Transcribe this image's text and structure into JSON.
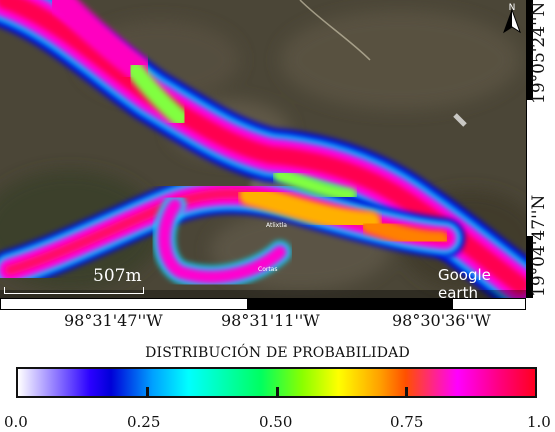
{
  "map": {
    "scale_label": "507m",
    "watermark": "Google earth",
    "north_label": "N",
    "place_labels": [
      "Atlixtla",
      "Cortas"
    ]
  },
  "coordinates": {
    "latitudes": [
      "19°05'24''N",
      "19°04'47''N"
    ],
    "longitudes": [
      "98°31'47''W",
      "98°31'11''W",
      "98°30'36''W"
    ]
  },
  "legend": {
    "title": "DISTRIBUCIÓN DE PROBABILIDAD",
    "ticks": [
      "0.0",
      "0.25",
      "0.50",
      "0.75",
      "1.0"
    ],
    "range": [
      0.0,
      1.0
    ],
    "colors": [
      "#ffffff",
      "#0000d8",
      "#00ffff",
      "#00ff60",
      "#ffff00",
      "#ff5000",
      "#ff00ff",
      "#ff0020"
    ]
  }
}
